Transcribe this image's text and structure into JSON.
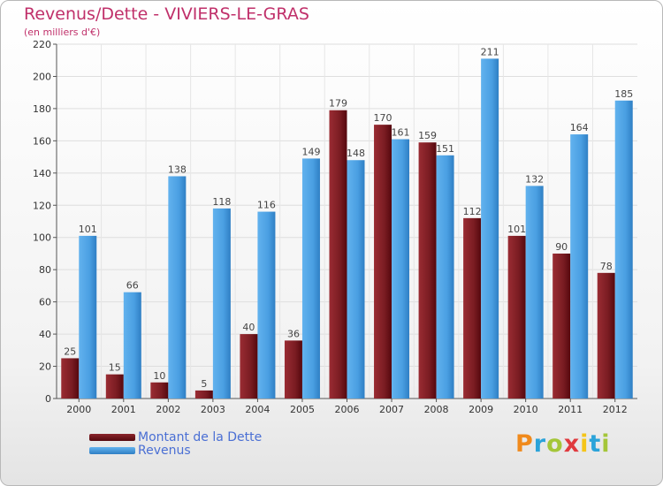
{
  "chart_data": {
    "type": "bar",
    "title": "Revenus/Dette - VIVIERS-LE-GRAS",
    "subtitle": "(en milliers d'€)",
    "categories": [
      "2000",
      "2001",
      "2002",
      "2003",
      "2004",
      "2005",
      "2006",
      "2007",
      "2008",
      "2009",
      "2010",
      "2011",
      "2012"
    ],
    "series": [
      {
        "name": "Montant de la Dette",
        "color": "#7a1c22",
        "values": [
          25,
          15,
          10,
          5,
          40,
          36,
          179,
          170,
          159,
          112,
          101,
          90,
          78
        ]
      },
      {
        "name": "Revenus",
        "color": "#4ea3e6",
        "values": [
          101,
          66,
          138,
          118,
          116,
          149,
          148,
          161,
          151,
          211,
          132,
          164,
          185
        ]
      }
    ],
    "yticks": [
      0,
      20,
      40,
      60,
      80,
      100,
      120,
      140,
      160,
      180,
      200,
      220
    ],
    "ylim": [
      0,
      220
    ],
    "grid": true,
    "legend": "bottom-left"
  },
  "logo": {
    "letters": [
      "P",
      "r",
      "o",
      "x",
      "i",
      "t",
      "i"
    ],
    "colors": [
      "#f08a1c",
      "#2ba3d9",
      "#a4c639",
      "#e03a3e",
      "#f5c518",
      "#2ba3d9",
      "#a4c639"
    ]
  }
}
